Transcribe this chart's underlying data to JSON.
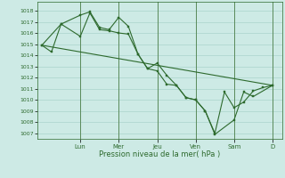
{
  "background_color": "#cdeae5",
  "grid_color": "#aad4cc",
  "line_color": "#2d6a2d",
  "xlabel": "Pression niveau de la mer( hPa )",
  "ylim": [
    1006.5,
    1018.8
  ],
  "yticks": [
    1007,
    1008,
    1009,
    1010,
    1011,
    1012,
    1013,
    1014,
    1015,
    1016,
    1017,
    1018
  ],
  "day_labels": [
    "Lun",
    "Mer",
    "Jeu",
    "Ven",
    "Sam",
    "D"
  ],
  "day_positions": [
    24,
    48,
    72,
    96,
    120,
    144
  ],
  "xlim": [
    -3,
    150
  ],
  "series1_x": [
    0,
    6,
    12,
    24,
    30,
    36,
    42,
    48,
    54,
    60,
    66,
    72,
    78,
    84,
    90,
    96,
    102,
    108,
    114,
    120,
    126,
    132,
    138,
    144
  ],
  "series1_y": [
    1014.9,
    1014.3,
    1016.8,
    1015.7,
    1017.8,
    1016.3,
    1016.2,
    1016.0,
    1015.9,
    1014.1,
    1012.8,
    1013.3,
    1012.2,
    1011.3,
    1010.2,
    1010.0,
    1009.0,
    1007.0,
    1010.7,
    1009.3,
    1009.8,
    1010.8,
    1011.1,
    1011.3
  ],
  "series2_x": [
    0,
    12,
    24,
    30,
    36,
    42,
    48,
    54,
    60,
    66,
    72,
    78,
    84,
    90,
    96,
    102,
    108,
    120,
    126,
    132,
    144
  ],
  "series2_y": [
    1014.9,
    1016.8,
    1017.6,
    1017.9,
    1016.5,
    1016.3,
    1017.4,
    1016.6,
    1014.1,
    1012.8,
    1012.6,
    1011.4,
    1011.3,
    1010.2,
    1010.0,
    1009.0,
    1006.9,
    1008.2,
    1010.7,
    1010.3,
    1011.3
  ],
  "series3_x": [
    0,
    144
  ],
  "series3_y": [
    1014.9,
    1011.3
  ]
}
